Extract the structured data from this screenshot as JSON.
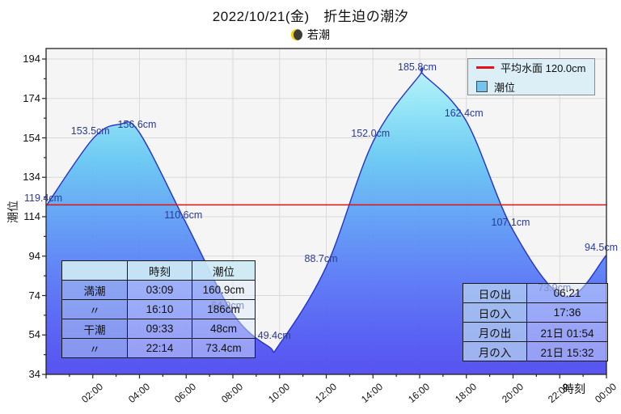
{
  "title": "2022/10/21(金)　折生迫の潮汐",
  "moon": {
    "phase_label": "若潮"
  },
  "legend": {
    "mean_line_label": "平均水面 120.0cm",
    "tide_label": "潮位"
  },
  "axes": {
    "y_label": "潮位",
    "x_label": "時刻"
  },
  "chart_data": {
    "type": "area",
    "title": "2022/10/21(金) 折生迫の潮汐",
    "xlabel": "時刻",
    "ylabel": "潮位",
    "x_unit": "hour",
    "y_unit": "cm",
    "xlim": [
      0,
      24
    ],
    "ylim": [
      34,
      194
    ],
    "grid": true,
    "legend_position": "top-right",
    "mean_sea_level_cm": 120.0,
    "y_ticks": [
      34,
      54,
      74,
      94,
      114,
      134,
      154,
      174,
      194
    ],
    "x_ticks": [
      {
        "hour": 2,
        "label": "02:00"
      },
      {
        "hour": 4,
        "label": "04:00"
      },
      {
        "hour": 6,
        "label": "06:00"
      },
      {
        "hour": 8,
        "label": "08:00"
      },
      {
        "hour": 10,
        "label": "10:00"
      },
      {
        "hour": 12,
        "label": "12:00"
      },
      {
        "hour": 14,
        "label": "14:00"
      },
      {
        "hour": 16,
        "label": "16:00"
      },
      {
        "hour": 18,
        "label": "18:00"
      },
      {
        "hour": 20,
        "label": "20:00"
      },
      {
        "hour": 22,
        "label": "22:00"
      },
      {
        "hour": 24,
        "label": "00:00"
      }
    ],
    "points": [
      {
        "hour": 0,
        "cm": 119.4
      },
      {
        "hour": 2,
        "cm": 153.5
      },
      {
        "hour": 3.15,
        "cm": 160.9
      },
      {
        "hour": 4,
        "cm": 156.6
      },
      {
        "hour": 6,
        "cm": 110.6
      },
      {
        "hour": 8,
        "cm": 64.9
      },
      {
        "hour": 9.55,
        "cm": 48.0
      },
      {
        "hour": 10,
        "cm": 49.4
      },
      {
        "hour": 12,
        "cm": 88.7
      },
      {
        "hour": 14,
        "cm": 152.0
      },
      {
        "hour": 16,
        "cm": 185.8
      },
      {
        "hour": 16.17,
        "cm": 186.0
      },
      {
        "hour": 18,
        "cm": 162.4
      },
      {
        "hour": 20,
        "cm": 107.1
      },
      {
        "hour": 22.23,
        "cm": 73.4
      },
      {
        "hour": 24,
        "cm": 94.5
      }
    ],
    "point_labels": [
      {
        "hour": 0,
        "cm": 119.4,
        "text": "119.4cm"
      },
      {
        "hour": 2,
        "cm": 153.5,
        "text": "153.5cm"
      },
      {
        "hour": 4,
        "cm": 156.6,
        "text": "156.6cm"
      },
      {
        "hour": 6,
        "cm": 110.6,
        "text": "110.6cm"
      },
      {
        "hour": 8,
        "cm": 64.9,
        "text": "64.9cm"
      },
      {
        "hour": 10,
        "cm": 49.4,
        "text": "49.4cm"
      },
      {
        "hour": 12,
        "cm": 88.7,
        "text": "88.7cm"
      },
      {
        "hour": 14,
        "cm": 152.0,
        "text": "152.0cm"
      },
      {
        "hour": 16,
        "cm": 185.8,
        "text": "185.8cm"
      },
      {
        "hour": 18,
        "cm": 162.4,
        "text": "162.4cm"
      },
      {
        "hour": 20,
        "cm": 107.1,
        "text": "107.1cm"
      },
      {
        "hour": 22,
        "cm": 73.9,
        "text": "73.9cm"
      },
      {
        "hour": 24,
        "cm": 94.5,
        "text": "94.5cm"
      }
    ]
  },
  "tables": {
    "tide": {
      "headers": [
        "",
        "時刻",
        "潮位"
      ],
      "rows": [
        [
          "満潮",
          "03:09",
          "160.9cm"
        ],
        [
          "〃",
          "16:10",
          "186cm"
        ],
        [
          "干潮",
          "09:33",
          "48cm"
        ],
        [
          "〃",
          "22:14",
          "73.4cm"
        ]
      ]
    },
    "sun_moon": {
      "rows": [
        [
          "日の出",
          "06:21"
        ],
        [
          "日の入",
          "17:36"
        ],
        [
          "月の出",
          "21日 01:54"
        ],
        [
          "月の入",
          "21日 15:32"
        ]
      ]
    }
  },
  "colors": {
    "mean_line": "#dd1212",
    "curve_stroke": "#2330d0",
    "point_label_text": "#2b3a92",
    "fill_top": "#b5f1fa",
    "fill_bottom": "#4a46ef",
    "plot_bg": "#f5f5f5",
    "grid": "#d9d9d9"
  }
}
